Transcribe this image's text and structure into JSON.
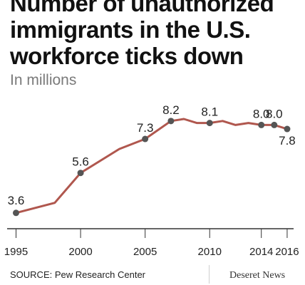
{
  "title": "Number of unauthorized immigrants in the U.S. workforce ticks down",
  "subtitle": "In millions",
  "source": "SOURCE: Pew Research Center",
  "brand": "Deseret News",
  "colors": {
    "line": "#b0574e",
    "marker": "#555555",
    "axis": "#333333",
    "text": "#222222"
  },
  "chart_data": {
    "type": "line",
    "title": "Number of unauthorized immigrants in the U.S. workforce ticks down",
    "subtitle": "In millions",
    "xlim": [
      1994.2,
      2016.5
    ],
    "ylim": [
      2.2,
      8.8
    ],
    "x_ticks": [
      1995,
      2000,
      2005,
      2010,
      2014,
      2016
    ],
    "grid": false,
    "series": [
      {
        "x": [
          1995,
          1998,
          2000,
          2003,
          2005,
          2007,
          2008,
          2009,
          2010,
          2011,
          2012,
          2013,
          2014,
          2015,
          2016
        ],
        "y": [
          3.6,
          4.1,
          5.6,
          6.8,
          7.3,
          8.2,
          8.3,
          8.1,
          8.1,
          8.2,
          8.0,
          8.1,
          8.0,
          8.0,
          7.8
        ]
      }
    ],
    "labeled_points": [
      {
        "x": 1995,
        "y": 3.6,
        "label": "3.6"
      },
      {
        "x": 2000,
        "y": 5.6,
        "label": "5.6"
      },
      {
        "x": 2005,
        "y": 7.3,
        "label": "7.3"
      },
      {
        "x": 2007,
        "y": 8.2,
        "label": "8.2"
      },
      {
        "x": 2010,
        "y": 8.1,
        "label": "8.1"
      },
      {
        "x": 2014,
        "y": 8.0,
        "label": "8.0"
      },
      {
        "x": 2015,
        "y": 8.0,
        "label": "8.0"
      },
      {
        "x": 2016,
        "y": 7.8,
        "label": "7.8"
      }
    ]
  }
}
